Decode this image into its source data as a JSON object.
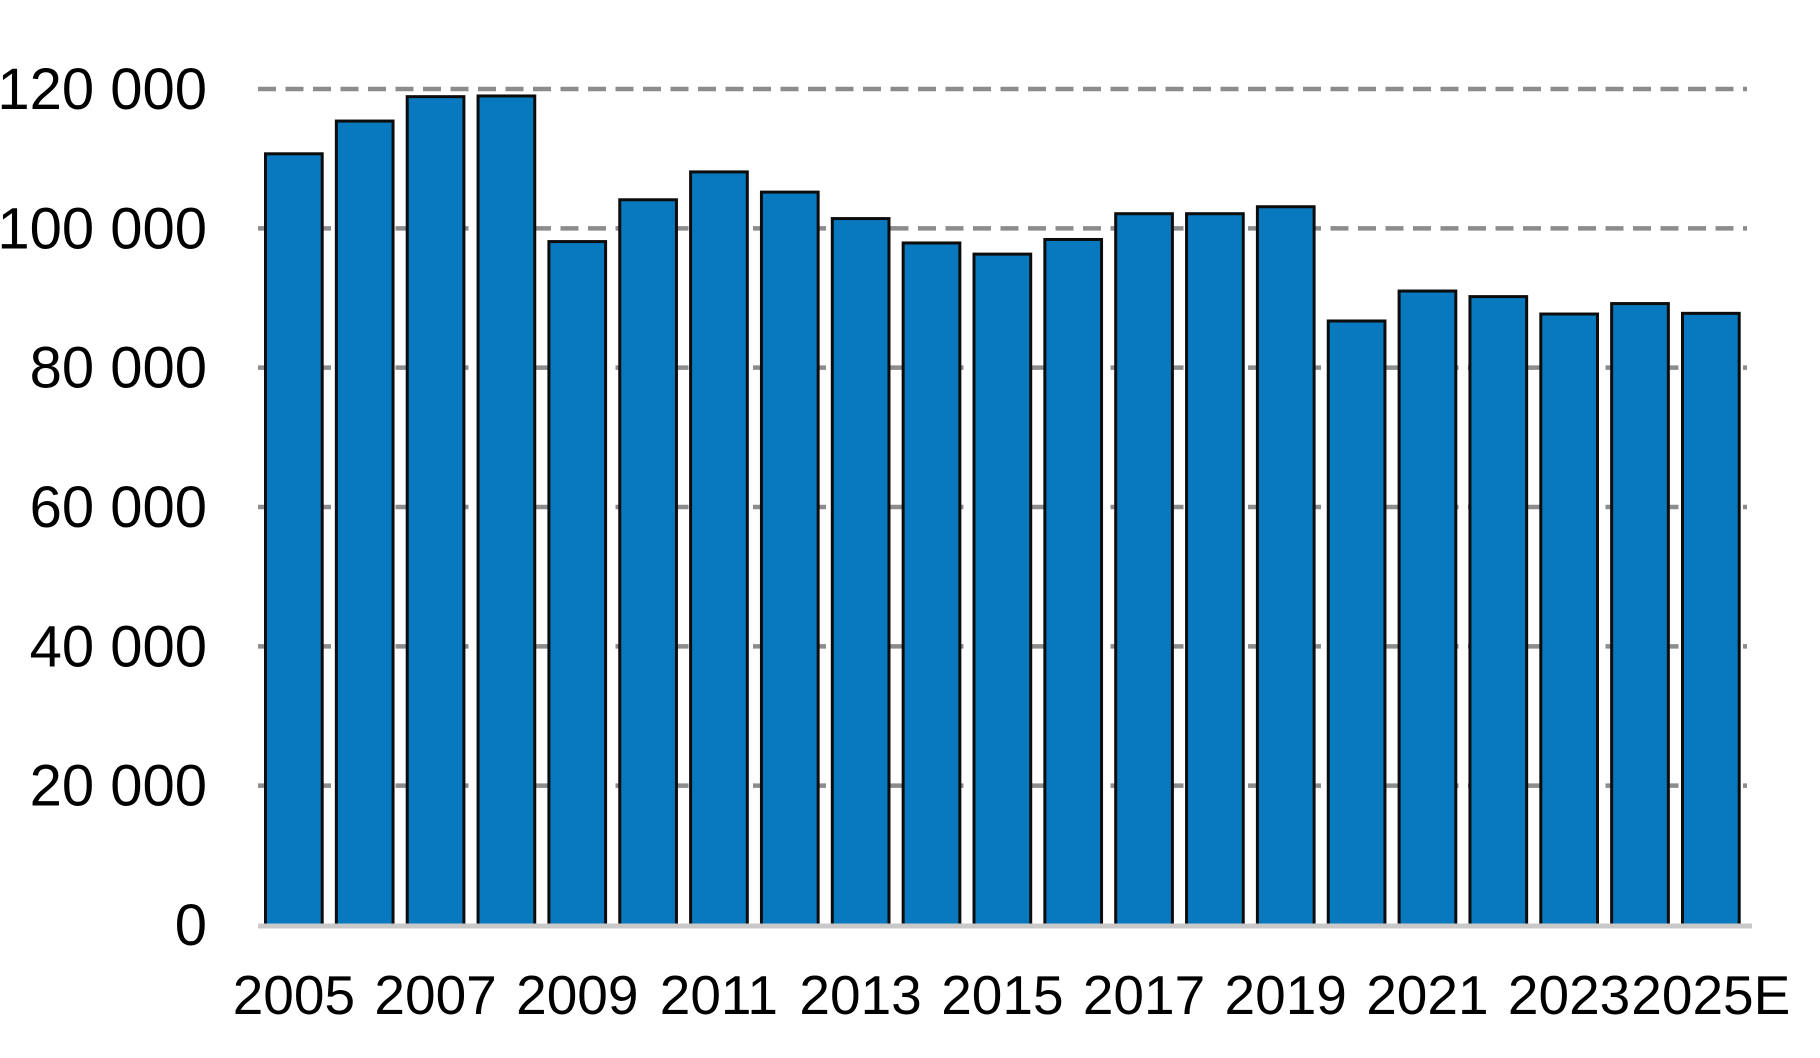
{
  "chart_data": {
    "type": "bar",
    "title": "",
    "xlabel": "",
    "ylabel": "",
    "categories": [
      "2005",
      "2006",
      "2007",
      "2008",
      "2009",
      "2010",
      "2011",
      "2012",
      "2013",
      "2014",
      "2015",
      "2016",
      "2017",
      "2018",
      "2019",
      "2020",
      "2021",
      "2022",
      "2023",
      "2024",
      "2025E"
    ],
    "values": [
      110700,
      115400,
      118900,
      119000,
      98100,
      104100,
      108100,
      105200,
      101400,
      97900,
      96300,
      98400,
      102100,
      102100,
      103100,
      86700,
      91000,
      90200,
      87700,
      89200,
      87800
    ],
    "x_tick_labels": [
      "2005",
      "2007",
      "2009",
      "2011",
      "2013",
      "2015",
      "2017",
      "2019",
      "2021",
      "2023",
      "2025E"
    ],
    "x_tick_indices": [
      0,
      2,
      4,
      6,
      8,
      10,
      12,
      14,
      16,
      18,
      20
    ],
    "y_ticks": [
      0,
      20000,
      40000,
      60000,
      80000,
      100000,
      120000
    ],
    "y_tick_labels": [
      "0",
      "20 000",
      "40 000",
      "60 000",
      "80 000",
      "100 000",
      "120 000"
    ],
    "ylim": [
      0,
      120000
    ],
    "grid": "horizontal-dashed-behind-bars",
    "legend": "none",
    "colors": {
      "bar_fill": "#0879BE",
      "bar_border": "#0c0c0c",
      "gridline": "#8c8c8c",
      "baseline": "#c9c9c9",
      "text": "#000000",
      "background": "#ffffff"
    }
  }
}
